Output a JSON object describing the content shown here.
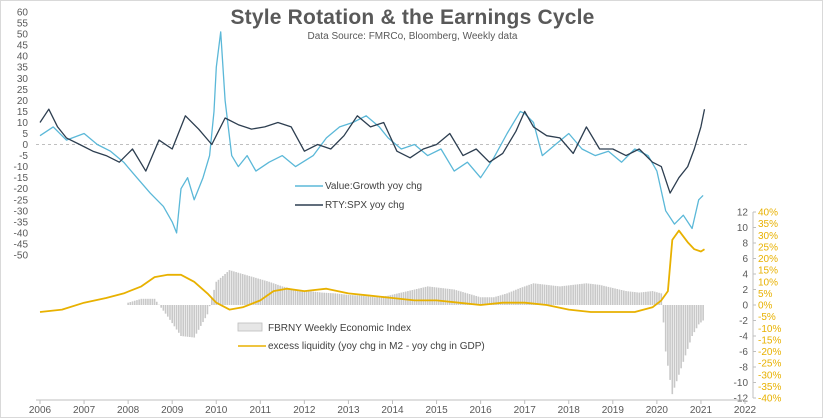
{
  "chart_data": {
    "type": "line",
    "title": "Style Rotation & the Earnings Cycle",
    "subtitle": "Data Source: FMRCo, Bloomberg,  Weekly data",
    "x_ticks": [
      "2006",
      "2007",
      "2008",
      "2009",
      "2010",
      "2011",
      "2012",
      "2013",
      "2014",
      "2015",
      "2016",
      "2017",
      "2018",
      "2019",
      "2020",
      "2021",
      "2022"
    ],
    "xlim": [
      2006,
      2022
    ],
    "left_axis": {
      "ticks": [
        60,
        55,
        50,
        45,
        40,
        35,
        30,
        25,
        20,
        15,
        10,
        5,
        0,
        -5,
        -10,
        -15,
        -20,
        -25,
        -30,
        -35,
        -40,
        -45,
        -50
      ],
      "ylim": [
        -50,
        60
      ]
    },
    "right_axis": {
      "ticks": [
        12,
        10,
        8,
        6,
        4,
        2,
        0,
        -2,
        -4,
        -6,
        -8,
        -10,
        -12
      ],
      "ylim": [
        -12,
        12
      ]
    },
    "pct_axis": {
      "ticks": [
        "40%",
        "35%",
        "30%",
        "25%",
        "20%",
        "15%",
        "10%",
        "5%",
        "0%",
        "-5%",
        "-10%",
        "-15%",
        "-20%",
        "-25%",
        "-30%",
        "-35%",
        "-40%"
      ],
      "ylim": [
        -40,
        40
      ]
    },
    "series": [
      {
        "name": "Value:Growth yoy chg",
        "axis": "left",
        "color": "#5bb8d8",
        "x": [
          2006.0,
          2006.3,
          2006.6,
          2007.0,
          2007.3,
          2007.6,
          2007.9,
          2008.2,
          2008.5,
          2008.8,
          2009.0,
          2009.1,
          2009.2,
          2009.35,
          2009.5,
          2009.7,
          2009.85,
          2009.95,
          2010.0,
          2010.1,
          2010.2,
          2010.35,
          2010.5,
          2010.7,
          2010.9,
          2011.2,
          2011.5,
          2011.8,
          2012.2,
          2012.5,
          2012.8,
          2013.1,
          2013.4,
          2013.7,
          2013.9,
          2014.2,
          2014.5,
          2014.8,
          2015.1,
          2015.4,
          2015.7,
          2016.0,
          2016.3,
          2016.6,
          2016.9,
          2017.0,
          2017.2,
          2017.4,
          2017.7,
          2018.0,
          2018.3,
          2018.6,
          2018.9,
          2019.2,
          2019.5,
          2019.8,
          2020.0,
          2020.2,
          2020.4,
          2020.6,
          2020.8,
          2020.95,
          2021.05
        ],
        "values": [
          4,
          8,
          2,
          5,
          0,
          -3,
          -8,
          -15,
          -22,
          -28,
          -35,
          -40,
          -20,
          -15,
          -25,
          -15,
          -5,
          15,
          35,
          51,
          20,
          -5,
          -10,
          -5,
          -12,
          -8,
          -5,
          -10,
          -5,
          3,
          8,
          10,
          13,
          8,
          3,
          -2,
          0,
          -5,
          -2,
          -12,
          -8,
          -15,
          -6,
          5,
          15,
          14,
          10,
          -5,
          0,
          5,
          -2,
          -5,
          -3,
          -8,
          -2,
          -5,
          -12,
          -30,
          -36,
          -32,
          -38,
          -25,
          -23
        ]
      },
      {
        "name": "RTY:SPX yoy chg",
        "axis": "left",
        "color": "#2d3e50",
        "x": [
          2006.0,
          2006.2,
          2006.4,
          2006.6,
          2006.9,
          2007.2,
          2007.5,
          2007.8,
          2008.1,
          2008.4,
          2008.7,
          2009.0,
          2009.3,
          2009.6,
          2009.9,
          2010.2,
          2010.5,
          2010.8,
          2011.1,
          2011.4,
          2011.7,
          2012.0,
          2012.3,
          2012.6,
          2012.9,
          2013.2,
          2013.5,
          2013.8,
          2014.1,
          2014.4,
          2014.7,
          2015.0,
          2015.3,
          2015.6,
          2015.9,
          2016.2,
          2016.5,
          2016.8,
          2017.0,
          2017.2,
          2017.5,
          2017.8,
          2018.1,
          2018.4,
          2018.7,
          2019.0,
          2019.3,
          2019.6,
          2019.9,
          2020.1,
          2020.3,
          2020.5,
          2020.7,
          2020.85,
          2021.0,
          2021.08
        ],
        "values": [
          10,
          16,
          8,
          3,
          0,
          -3,
          -5,
          -8,
          -2,
          -12,
          2,
          -2,
          13,
          7,
          0,
          12,
          9,
          7,
          8,
          10,
          8,
          -3,
          0,
          -2,
          4,
          13,
          8,
          10,
          -3,
          -6,
          -2,
          0,
          5,
          -5,
          -2,
          -8,
          -4,
          6,
          15,
          8,
          4,
          3,
          -4,
          8,
          -2,
          -2,
          -5,
          -2,
          -8,
          -10,
          -22,
          -15,
          -10,
          -2,
          8,
          16
        ]
      },
      {
        "name": "FBRNY Weekly Economic Index",
        "axis": "right",
        "color": "#c8c8c8",
        "x": [
          2008.0,
          2008.3,
          2008.6,
          2008.9,
          2009.2,
          2009.5,
          2009.8,
          2010.0,
          2010.3,
          2010.6,
          2010.9,
          2011.2,
          2011.5,
          2011.8,
          2012.1,
          2012.4,
          2012.7,
          2013.0,
          2013.3,
          2013.6,
          2013.9,
          2014.2,
          2014.5,
          2014.8,
          2015.1,
          2015.4,
          2015.7,
          2016.0,
          2016.3,
          2016.6,
          2016.9,
          2017.2,
          2017.5,
          2017.8,
          2018.1,
          2018.4,
          2018.7,
          2019.0,
          2019.3,
          2019.6,
          2019.9,
          2020.1,
          2020.2,
          2020.35,
          2020.5,
          2020.65,
          2020.8,
          2020.95,
          2021.05
        ],
        "values": [
          0.3,
          0.8,
          0.8,
          -1.5,
          -4.0,
          -4.2,
          -1.2,
          3.0,
          4.5,
          4.0,
          3.5,
          3.0,
          2.4,
          2.0,
          1.8,
          1.6,
          1.5,
          1.3,
          1.2,
          1.0,
          1.2,
          1.6,
          2.0,
          2.4,
          2.2,
          2.0,
          1.5,
          1.0,
          1.0,
          1.5,
          2.2,
          2.8,
          2.6,
          2.4,
          2.6,
          2.8,
          2.6,
          2.2,
          1.8,
          1.6,
          1.8,
          1.5,
          -6.0,
          -11.5,
          -9.0,
          -6.5,
          -4.0,
          -2.5,
          -2.0
        ]
      },
      {
        "name": "excess liquidity (yoy chg in M2 - yoy chg in GDP)",
        "axis": "pct",
        "color": "#e8b100",
        "x": [
          2006.0,
          2006.5,
          2007.0,
          2007.5,
          2007.9,
          2008.3,
          2008.6,
          2008.9,
          2009.2,
          2009.5,
          2009.8,
          2010.0,
          2010.3,
          2010.6,
          2011.0,
          2011.3,
          2011.6,
          2012.0,
          2012.5,
          2013.0,
          2013.5,
          2014.0,
          2014.5,
          2015.0,
          2015.5,
          2016.0,
          2016.5,
          2017.0,
          2017.5,
          2018.0,
          2018.5,
          2019.0,
          2019.5,
          2019.9,
          2020.1,
          2020.25,
          2020.35,
          2020.5,
          2020.7,
          2020.85,
          2021.0,
          2021.08
        ],
        "values": [
          -3,
          -2,
          1,
          3,
          5,
          8,
          12,
          13,
          13,
          10,
          5,
          1,
          -2,
          -1,
          2,
          6,
          7,
          6,
          7,
          5,
          4,
          3,
          2,
          2,
          1,
          0,
          1,
          1,
          0,
          -2,
          -3,
          -3,
          -3,
          -1,
          2,
          6,
          28,
          32,
          27,
          24,
          23,
          24
        ]
      }
    ],
    "legends": [
      "Value:Growth yoy chg",
      "RTY:SPX yoy chg",
      "FBRNY Weekly Economic Index",
      "excess liquidity (yoy chg in M2 - yoy chg in GDP)"
    ]
  }
}
